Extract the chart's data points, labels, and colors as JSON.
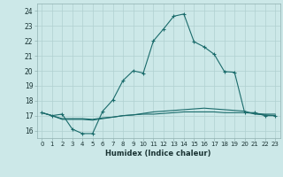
{
  "xlabel": "Humidex (Indice chaleur)",
  "ylabel": "",
  "xlim": [
    -0.5,
    23.5
  ],
  "ylim": [
    15.5,
    24.5
  ],
  "xticks": [
    0,
    1,
    2,
    3,
    4,
    5,
    6,
    7,
    8,
    9,
    10,
    11,
    12,
    13,
    14,
    15,
    16,
    17,
    18,
    19,
    20,
    21,
    22,
    23
  ],
  "yticks": [
    16,
    17,
    18,
    19,
    20,
    21,
    22,
    23,
    24
  ],
  "bg_color": "#cce8e8",
  "grid_color": "#b0d0d0",
  "line_color": "#1a6b6b",
  "line1_x": [
    0,
    1,
    2,
    3,
    4,
    5,
    6,
    7,
    8,
    9,
    10,
    11,
    12,
    13,
    14,
    15,
    16,
    17,
    18,
    19,
    20,
    21,
    22,
    23
  ],
  "line1_y": [
    17.2,
    17.0,
    17.1,
    16.1,
    15.8,
    15.8,
    17.3,
    18.05,
    19.35,
    20.0,
    19.85,
    22.0,
    22.8,
    23.65,
    23.8,
    21.95,
    21.6,
    21.1,
    19.95,
    19.9,
    17.2,
    17.2,
    17.0,
    17.0
  ],
  "line2_x": [
    0,
    1,
    2,
    3,
    4,
    5,
    6,
    7,
    8,
    9,
    10,
    11,
    12,
    13,
    14,
    15,
    16,
    17,
    18,
    19,
    20,
    21,
    22,
    23
  ],
  "line2_y": [
    17.2,
    17.0,
    16.8,
    16.8,
    16.8,
    16.75,
    16.85,
    16.9,
    17.0,
    17.05,
    17.1,
    17.1,
    17.15,
    17.2,
    17.25,
    17.25,
    17.25,
    17.25,
    17.2,
    17.2,
    17.2,
    17.15,
    17.1,
    17.1
  ],
  "line3_x": [
    0,
    1,
    2,
    3,
    4,
    5,
    6,
    7,
    8,
    9,
    10,
    11,
    12,
    13,
    14,
    15,
    16,
    17,
    18,
    19,
    20,
    21,
    22,
    23
  ],
  "line3_y": [
    17.2,
    17.0,
    16.75,
    16.75,
    16.75,
    16.7,
    16.8,
    16.9,
    17.0,
    17.05,
    17.15,
    17.25,
    17.3,
    17.35,
    17.4,
    17.45,
    17.5,
    17.45,
    17.4,
    17.35,
    17.3,
    17.1,
    17.05,
    17.0
  ]
}
